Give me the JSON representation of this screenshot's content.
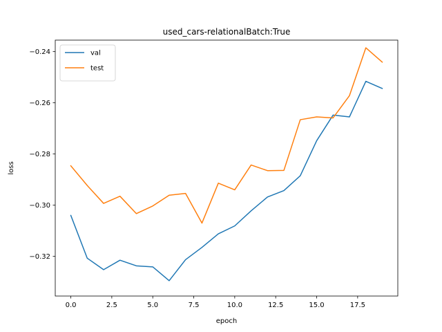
{
  "chart_data": {
    "type": "line",
    "title": "used_cars-relationalBatch:True",
    "xlabel": "epoch",
    "ylabel": "loss",
    "xlim": [
      -0.95,
      19.95
    ],
    "ylim": [
      -0.3355,
      -0.2355
    ],
    "xticks": [
      0.0,
      2.5,
      5.0,
      7.5,
      10.0,
      12.5,
      15.0,
      17.5
    ],
    "xtick_labels": [
      "0.0",
      "2.5",
      "5.0",
      "7.5",
      "10.0",
      "12.5",
      "15.0",
      "17.5"
    ],
    "yticks": [
      -0.32,
      -0.3,
      -0.28,
      -0.26,
      -0.24
    ],
    "ytick_labels": [
      "−0.32",
      "−0.30",
      "−0.28",
      "−0.26",
      "−0.24"
    ],
    "grid": false,
    "legend_position": "upper-left",
    "x": [
      0,
      1,
      2,
      3,
      4,
      5,
      6,
      7,
      8,
      9,
      10,
      11,
      12,
      13,
      14,
      15,
      16,
      17,
      18,
      19
    ],
    "series": [
      {
        "name": "val",
        "color": "#1f77b4",
        "values": [
          -0.304,
          -0.3207,
          -0.3252,
          -0.3215,
          -0.3237,
          -0.3241,
          -0.3295,
          -0.3213,
          -0.3165,
          -0.3112,
          -0.3081,
          -0.3022,
          -0.2968,
          -0.2943,
          -0.2885,
          -0.2748,
          -0.2648,
          -0.2655,
          -0.2516,
          -0.2544
        ]
      },
      {
        "name": "test",
        "color": "#ff7f0e",
        "values": [
          -0.2846,
          -0.2923,
          -0.2993,
          -0.2965,
          -0.3033,
          -0.3003,
          -0.2961,
          -0.2954,
          -0.307,
          -0.2914,
          -0.294,
          -0.2843,
          -0.2865,
          -0.2864,
          -0.2666,
          -0.2655,
          -0.2659,
          -0.2572,
          -0.2385,
          -0.2441
        ]
      }
    ]
  }
}
